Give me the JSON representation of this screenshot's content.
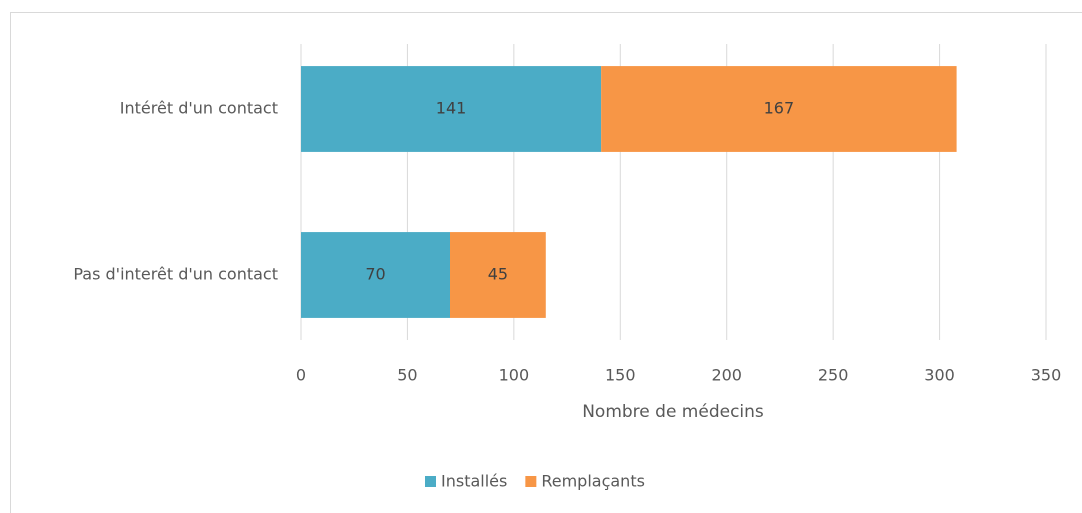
{
  "chart_data": {
    "type": "bar",
    "orientation": "horizontal",
    "stacked": true,
    "categories": [
      "Intérêt d'un contact",
      "Pas d'interêt d'un contact"
    ],
    "series": [
      {
        "name": "Installés",
        "color": "#4bacc6",
        "values": [
          141,
          70
        ]
      },
      {
        "name": "Remplaçants",
        "color": "#f79646",
        "values": [
          167,
          45
        ]
      }
    ],
    "x_label": "Nombre de médecins",
    "xlim": [
      0,
      350
    ],
    "xticks": [
      0,
      50,
      100,
      150,
      200,
      250,
      300,
      350
    ],
    "grid": true,
    "legend": "bottom"
  }
}
